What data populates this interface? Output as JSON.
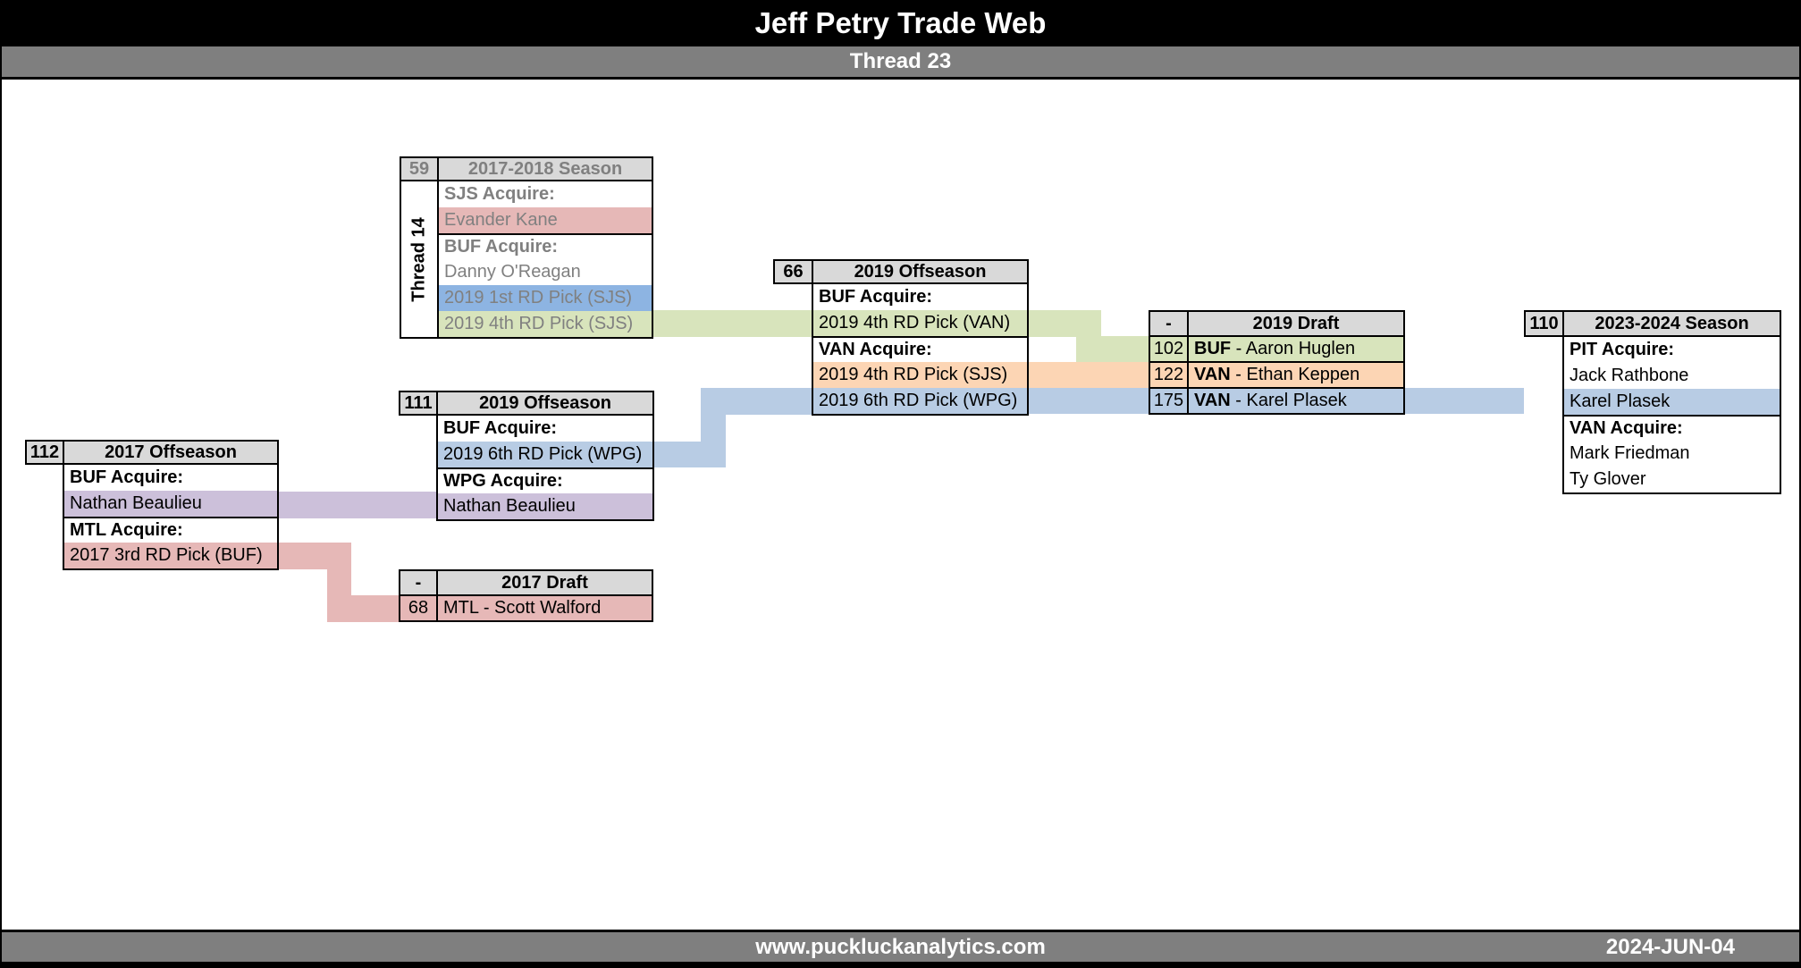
{
  "title": "Jeff Petry Trade Web",
  "thread": "Thread 23",
  "footer": {
    "site": "www.puckluckanalytics.com",
    "date": "2024-JUN-04"
  },
  "palette": {
    "green": "#d8e4bc",
    "orange": "#fcd5b4",
    "blue_light": "#b8cce4",
    "blue_strong": "#8db4e2",
    "purple": "#ccc0da",
    "pink": "#e6b8b7",
    "header_fill": "#d9d9d9",
    "bar_gray": "#7f7f7f",
    "muted_text": "#808080",
    "black": "#000000",
    "white": "#ffffff"
  },
  "boxes": [
    {
      "number": "59",
      "title": "2017-2018 Season",
      "thread_label": "Thread 14",
      "rows": [
        {
          "text": "SJS Acquire:"
        },
        {
          "text": "Evander Kane"
        },
        {
          "text": "BUF Acquire:"
        },
        {
          "text": "Danny O'Reagan"
        },
        {
          "text": "2019 1st RD Pick (SJS)"
        },
        {
          "text": "2019 4th RD Pick (SJS)"
        }
      ]
    },
    {
      "number": "66",
      "title": "2019 Offseason",
      "rows": [
        {
          "text": "BUF Acquire:"
        },
        {
          "text": "2019 4th RD Pick (VAN)"
        },
        {
          "text": "VAN Acquire:"
        },
        {
          "text": "2019 4th RD Pick (SJS)"
        },
        {
          "text": "2019 6th RD Pick (WPG)"
        }
      ]
    },
    {
      "number": "111",
      "title": "2019 Offseason",
      "rows": [
        {
          "text": "BUF Acquire:"
        },
        {
          "text": "2019 6th RD Pick (WPG)"
        },
        {
          "text": "WPG Acquire:"
        },
        {
          "text": "Nathan Beaulieu"
        }
      ]
    },
    {
      "number": "112",
      "title": "2017 Offseason",
      "rows": [
        {
          "text": "BUF Acquire:"
        },
        {
          "text": "Nathan Beaulieu"
        },
        {
          "text": "MTL Acquire:"
        },
        {
          "text": "2017 3rd RD Pick (BUF)"
        }
      ]
    },
    {
      "number": "-",
      "title": "2017 Draft",
      "rows": [
        {
          "num": "68",
          "text": "MTL - Scott Walford"
        }
      ]
    },
    {
      "number": "-",
      "title": "2019 Draft",
      "rows": [
        {
          "num": "102",
          "team": "BUF",
          "text": " - Aaron Huglen"
        },
        {
          "num": "122",
          "team": "VAN",
          "text": " - Ethan Keppen"
        },
        {
          "num": "175",
          "team": "VAN",
          "text": " - Karel Plasek"
        }
      ]
    },
    {
      "number": "110",
      "title": "2023-2024 Season",
      "rows": [
        {
          "text": "PIT Acquire:"
        },
        {
          "text": "Jack Rathbone"
        },
        {
          "text": "Karel Plasek"
        },
        {
          "text": "VAN Acquire:"
        },
        {
          "text": "Mark Friedman"
        },
        {
          "text": "Ty Glover"
        }
      ]
    }
  ]
}
